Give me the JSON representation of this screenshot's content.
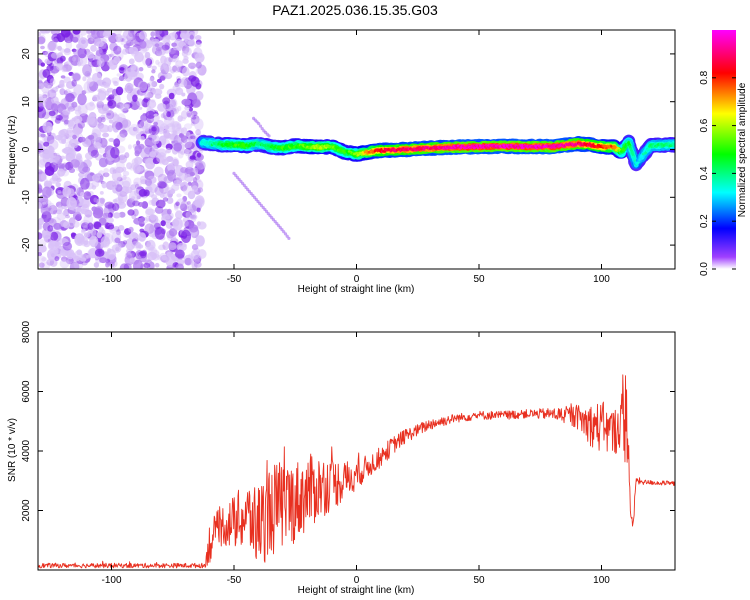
{
  "title": "PAZ1.2025.036.15.35.G03",
  "chart_data": [
    {
      "type": "heatmap",
      "xlabel": "Height of straight line (km)",
      "ylabel": "Frequency (Hz)",
      "xlim": [
        -130,
        130
      ],
      "ylim": [
        -25,
        25
      ],
      "xticks": [
        -100,
        -50,
        0,
        50,
        100
      ],
      "yticks": [
        -20,
        -10,
        0,
        10,
        20
      ],
      "noise_region_x": [
        -130,
        -63
      ],
      "trace": {
        "x": [
          -63,
          -55,
          -50,
          -45,
          -40,
          -35,
          -30,
          -25,
          -20,
          -15,
          -10,
          -5,
          0,
          5,
          10,
          20,
          30,
          40,
          50,
          60,
          70,
          80,
          90,
          95,
          100,
          105,
          108,
          111,
          114,
          120,
          130
        ],
        "frequency": [
          1.5,
          1.0,
          1.0,
          0.8,
          1.2,
          0.5,
          0.3,
          0.8,
          0.6,
          0.5,
          0.6,
          -0.5,
          -1.0,
          -0.5,
          -0.2,
          0.0,
          0.3,
          0.5,
          0.6,
          0.7,
          0.6,
          0.6,
          1.2,
          1.0,
          0.6,
          0.5,
          -0.5,
          1.5,
          -3.0,
          0.8,
          1.0
        ],
        "amplitude": [
          0.35,
          0.45,
          0.5,
          0.5,
          0.4,
          0.45,
          0.5,
          0.5,
          0.55,
          0.6,
          0.55,
          0.5,
          0.55,
          0.75,
          0.85,
          0.9,
          0.9,
          0.95,
          0.95,
          0.95,
          0.95,
          0.95,
          0.9,
          0.85,
          0.8,
          0.75,
          0.5,
          0.45,
          0.3,
          0.4,
          0.4
        ]
      },
      "side_branches": [
        {
          "x": [
            -42,
            -40,
            -38,
            -35
          ],
          "frequency": [
            6.5,
            5.5,
            4.0,
            2.5
          ]
        },
        {
          "x": [
            -50,
            -45,
            -40,
            -35,
            -30,
            -27
          ],
          "frequency": [
            -5,
            -8,
            -11,
            -14,
            -17,
            -19
          ]
        }
      ],
      "colorbar": {
        "label": "Normalized spectral amplitude",
        "range": [
          0.0,
          1.0
        ],
        "ticks": [
          0.0,
          0.2,
          0.4,
          0.6,
          0.8
        ]
      }
    },
    {
      "type": "line",
      "xlabel": "Height of straight line (km)",
      "ylabel": "SNR (10 * v/v)",
      "xlim": [
        -130,
        130
      ],
      "ylim": [
        0,
        8000
      ],
      "xticks": [
        -100,
        -50,
        0,
        50,
        100
      ],
      "yticks": [
        2000,
        4000,
        6000,
        8000
      ],
      "color": "#e83020",
      "envelope": {
        "x": [
          -130,
          -62,
          -60,
          -55,
          -50,
          -45,
          -40,
          -35,
          -30,
          -25,
          -20,
          -15,
          -10,
          -5,
          0,
          5,
          10,
          15,
          20,
          25,
          30,
          35,
          40,
          50,
          60,
          70,
          80,
          90,
          95,
          100,
          105,
          108,
          110,
          111,
          112,
          113,
          114,
          118,
          130
        ],
        "mean": [
          150,
          150,
          900,
          1500,
          1600,
          1800,
          1500,
          2000,
          2200,
          2300,
          2600,
          2800,
          2900,
          3000,
          3200,
          3500,
          3800,
          4200,
          4500,
          4700,
          4900,
          5000,
          5100,
          5200,
          5200,
          5250,
          5250,
          5150,
          4900,
          4800,
          4600,
          5000,
          5200,
          4200,
          1600,
          1500,
          3000,
          2950,
          2900
        ],
        "noise": [
          80,
          80,
          700,
          700,
          900,
          1200,
          1400,
          1600,
          1500,
          1400,
          1300,
          1100,
          900,
          700,
          500,
          400,
          350,
          300,
          250,
          200,
          200,
          180,
          150,
          150,
          150,
          150,
          200,
          400,
          700,
          900,
          800,
          900,
          1800,
          800,
          300,
          200,
          150,
          80,
          80
        ]
      }
    }
  ],
  "colors": {
    "noise_purple": "#7a1fe6",
    "noise_light": "#d8c0f8",
    "line_red": "#e83020"
  }
}
